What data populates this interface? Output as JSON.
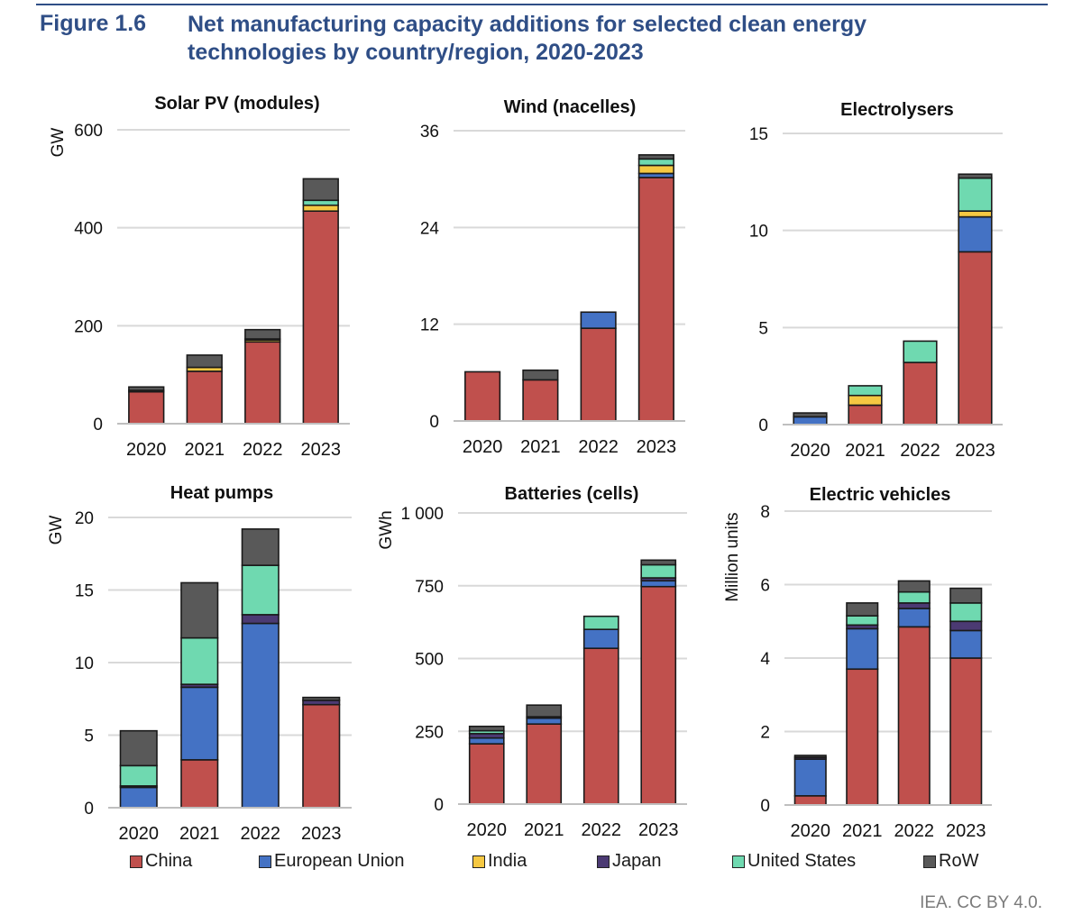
{
  "header": {
    "figure_label": "Figure 1.6",
    "title": "Net manufacturing capacity additions for selected clean energy technologies by country/region, 2020-2023"
  },
  "series_colors": {
    "China": "#c0504d",
    "European Union": "#4472c4",
    "India": "#f5c842",
    "Japan": "#4b3a73",
    "United States": "#6fd9b0",
    "RoW": "#595959"
  },
  "legend": [
    "China",
    "European Union",
    "India",
    "Japan",
    "United States",
    "RoW"
  ],
  "credit": "IEA. CC BY 4.0.",
  "chart_data": [
    {
      "type": "bar",
      "stacked": true,
      "title": "Solar PV (modules)",
      "ylabel": "GW",
      "categories": [
        "2020",
        "2021",
        "2022",
        "2023"
      ],
      "ylim": [
        0,
        600
      ],
      "yticks": [
        0,
        200,
        400,
        600
      ],
      "ytick_labels": [
        "0",
        "200",
        "400",
        "600"
      ],
      "series": [
        {
          "name": "China",
          "values": [
            65,
            107,
            167,
            434
          ]
        },
        {
          "name": "European Union",
          "values": [
            0,
            0,
            0,
            0
          ]
        },
        {
          "name": "India",
          "values": [
            3,
            8,
            4,
            12
          ]
        },
        {
          "name": "Japan",
          "values": [
            0,
            0,
            0,
            0
          ]
        },
        {
          "name": "United States",
          "values": [
            0,
            0,
            2,
            10
          ]
        },
        {
          "name": "RoW",
          "values": [
            7,
            25,
            19,
            44
          ]
        }
      ]
    },
    {
      "type": "bar",
      "stacked": true,
      "title": "Wind (nacelles)",
      "ylabel": "",
      "categories": [
        "2020",
        "2021",
        "2022",
        "2023"
      ],
      "ylim": [
        0,
        36
      ],
      "yticks": [
        0,
        12,
        24,
        36
      ],
      "ytick_labels": [
        "0",
        "12",
        "24",
        "36"
      ],
      "series": [
        {
          "name": "China",
          "values": [
            6.1,
            5.1,
            11.5,
            30.2
          ]
        },
        {
          "name": "European Union",
          "values": [
            0,
            0,
            2,
            0.5
          ]
        },
        {
          "name": "India",
          "values": [
            0,
            0,
            0,
            1
          ]
        },
        {
          "name": "Japan",
          "values": [
            0,
            0,
            0,
            0
          ]
        },
        {
          "name": "United States",
          "values": [
            0,
            0,
            0,
            0.8
          ]
        },
        {
          "name": "RoW",
          "values": [
            0,
            1.2,
            0,
            0.5
          ]
        }
      ]
    },
    {
      "type": "bar",
      "stacked": true,
      "title": "Electrolysers",
      "ylabel": "",
      "categories": [
        "2020",
        "2021",
        "2022",
        "2023"
      ],
      "ylim": [
        0,
        15
      ],
      "yticks": [
        0,
        5,
        10,
        15
      ],
      "ytick_labels": [
        "0",
        "5",
        "10",
        "15"
      ],
      "series": [
        {
          "name": "China",
          "values": [
            0,
            1.0,
            3.2,
            8.9
          ]
        },
        {
          "name": "European Union",
          "values": [
            0.4,
            0,
            0,
            1.8
          ]
        },
        {
          "name": "India",
          "values": [
            0,
            0.5,
            0,
            0.3
          ]
        },
        {
          "name": "Japan",
          "values": [
            0,
            0,
            0,
            0
          ]
        },
        {
          "name": "United States",
          "values": [
            0,
            0.5,
            1.1,
            1.7
          ]
        },
        {
          "name": "RoW",
          "values": [
            0.2,
            0,
            0,
            0.2
          ]
        }
      ]
    },
    {
      "type": "bar",
      "stacked": true,
      "title": "Heat pumps",
      "ylabel": "GW",
      "categories": [
        "2020",
        "2021",
        "2022",
        "2023"
      ],
      "ylim": [
        0,
        20
      ],
      "yticks": [
        0,
        5,
        10,
        15,
        20
      ],
      "ytick_labels": [
        "0",
        "5",
        "10",
        "15",
        "20"
      ],
      "series": [
        {
          "name": "China",
          "values": [
            0,
            3.3,
            0,
            7.1
          ]
        },
        {
          "name": "European Union",
          "values": [
            1.4,
            5.0,
            12.7,
            0
          ]
        },
        {
          "name": "India",
          "values": [
            0,
            0,
            0,
            0
          ]
        },
        {
          "name": "Japan",
          "values": [
            0.1,
            0.2,
            0.6,
            0.3
          ]
        },
        {
          "name": "United States",
          "values": [
            1.4,
            3.2,
            3.4,
            0
          ]
        },
        {
          "name": "RoW",
          "values": [
            2.4,
            3.8,
            2.5,
            0.2
          ]
        }
      ]
    },
    {
      "type": "bar",
      "stacked": true,
      "title": "Batteries (cells)",
      "ylabel": "GWh",
      "categories": [
        "2020",
        "2021",
        "2022",
        "2023"
      ],
      "ylim": [
        0,
        1000
      ],
      "yticks": [
        0,
        250,
        500,
        750,
        1000
      ],
      "ytick_labels": [
        "0",
        "250",
        "500",
        "750",
        "1 000"
      ],
      "series": [
        {
          "name": "China",
          "values": [
            207,
            275,
            535,
            747
          ]
        },
        {
          "name": "European Union",
          "values": [
            20,
            20,
            65,
            20
          ]
        },
        {
          "name": "India",
          "values": [
            0,
            0,
            0,
            0
          ]
        },
        {
          "name": "Japan",
          "values": [
            15,
            5,
            0,
            10
          ]
        },
        {
          "name": "United States",
          "values": [
            10,
            0,
            45,
            45
          ]
        },
        {
          "name": "RoW",
          "values": [
            15,
            40,
            0,
            16
          ]
        }
      ]
    },
    {
      "type": "bar",
      "stacked": true,
      "title": "Electric vehicles",
      "ylabel": "Million units",
      "categories": [
        "2020",
        "2021",
        "2022",
        "2023"
      ],
      "ylim": [
        0,
        8
      ],
      "yticks": [
        0,
        2,
        4,
        6,
        8
      ],
      "ytick_labels": [
        "0",
        "2",
        "4",
        "6",
        "8"
      ],
      "series": [
        {
          "name": "China",
          "values": [
            0.25,
            3.7,
            4.85,
            4.0
          ]
        },
        {
          "name": "European Union",
          "values": [
            1.0,
            1.1,
            0.5,
            0.75
          ]
        },
        {
          "name": "India",
          "values": [
            0,
            0,
            0,
            0
          ]
        },
        {
          "name": "Japan",
          "values": [
            0.05,
            0.1,
            0.15,
            0.25
          ]
        },
        {
          "name": "United States",
          "values": [
            0,
            0.25,
            0.3,
            0.5
          ]
        },
        {
          "name": "RoW",
          "values": [
            0.05,
            0.35,
            0.3,
            0.4
          ]
        }
      ]
    }
  ]
}
